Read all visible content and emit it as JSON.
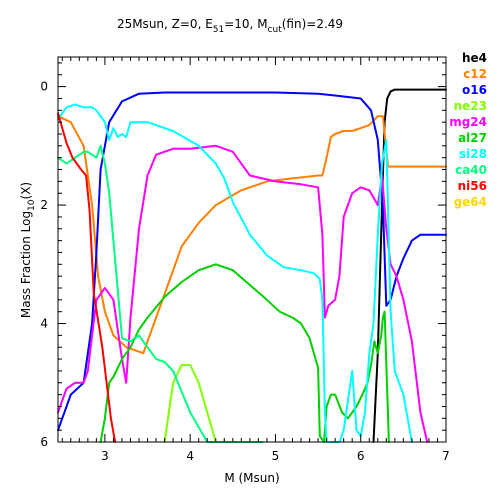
{
  "chart_data": {
    "type": "line",
    "title": {
      "pre": "25Msun, Z=0, E",
      "e_sub": "51",
      "mid": "=10, M",
      "m_sub": "cut",
      "post": "(fin)=2.49"
    },
    "xlabel": "M (Msun)",
    "ylabel": {
      "pre": "Mass Fraction Log",
      "sub": "10",
      "post": "(X)"
    },
    "xlim": [
      2.45,
      7.0
    ],
    "ylim": [
      -6.0,
      0.5
    ],
    "x_ticks": [
      3,
      4,
      5,
      6,
      7
    ],
    "y_ticks": [
      0,
      -2,
      -4,
      -6
    ],
    "x_tick_labels": [
      "3",
      "4",
      "5",
      "6",
      "7"
    ],
    "y_tick_labels": [
      "0",
      "2",
      "4",
      "6"
    ],
    "grid": false,
    "legend_position": "right-outside",
    "series": [
      {
        "name": "he4",
        "color": "#000000",
        "x": [
          6.15,
          6.2,
          6.23,
          6.26,
          6.28,
          6.31,
          6.35,
          6.4,
          6.5,
          6.8,
          7.0
        ],
        "y": [
          -6.0,
          -4.5,
          -3.0,
          -1.5,
          -0.6,
          -0.2,
          -0.08,
          -0.05,
          -0.05,
          -0.05,
          -0.05
        ]
      },
      {
        "name": "c12",
        "color": "#ff8000",
        "x": [
          2.45,
          2.6,
          2.75,
          2.85,
          2.92,
          3.0,
          3.1,
          3.25,
          3.45,
          3.6,
          3.75,
          3.9,
          4.1,
          4.3,
          4.6,
          4.9,
          5.2,
          5.5,
          5.55,
          5.6,
          5.65,
          5.7,
          5.8,
          5.9,
          6.0,
          6.1,
          6.2,
          6.26,
          6.32,
          6.4,
          6.7,
          7.0
        ],
        "y": [
          -0.5,
          -0.6,
          -1.0,
          -2.0,
          -3.2,
          -3.8,
          -4.2,
          -4.4,
          -4.5,
          -3.9,
          -3.3,
          -2.7,
          -2.3,
          -2.0,
          -1.75,
          -1.6,
          -1.55,
          -1.5,
          -1.5,
          -1.2,
          -0.85,
          -0.8,
          -0.75,
          -0.75,
          -0.7,
          -0.65,
          -0.5,
          -0.5,
          -1.35,
          -1.35,
          -1.35,
          -1.35
        ]
      },
      {
        "name": "o16",
        "color": "#0000ff",
        "x": [
          2.45,
          2.6,
          2.75,
          2.85,
          2.9,
          2.95,
          3.05,
          3.2,
          3.4,
          3.7,
          4.0,
          4.5,
          5.0,
          5.5,
          5.7,
          6.0,
          6.12,
          6.2,
          6.26,
          6.3,
          6.35,
          6.42,
          6.5,
          6.6,
          6.7,
          6.8,
          7.0
        ],
        "y": [
          -5.8,
          -5.2,
          -5.0,
          -4.0,
          -2.8,
          -1.4,
          -0.6,
          -0.25,
          -0.12,
          -0.1,
          -0.1,
          -0.1,
          -0.1,
          -0.12,
          -0.15,
          -0.2,
          -0.4,
          -0.9,
          -2.0,
          -3.7,
          -3.6,
          -3.2,
          -2.9,
          -2.6,
          -2.5,
          -2.5,
          -2.5
        ]
      },
      {
        "name": "ne23",
        "color": "#80ff00",
        "x": [
          3.7,
          3.8,
          3.9,
          4.0,
          4.1,
          4.2,
          4.3
        ],
        "y": [
          -6.0,
          -5.0,
          -4.7,
          -4.7,
          -5.0,
          -5.5,
          -6.0
        ]
      },
      {
        "name": "mg24",
        "color": "#ff00ff",
        "x": [
          2.45,
          2.55,
          2.65,
          2.75,
          2.8,
          2.9,
          3.0,
          3.1,
          3.2,
          3.25,
          3.3,
          3.4,
          3.5,
          3.6,
          3.8,
          4.0,
          4.3,
          4.5,
          4.7,
          5.0,
          5.3,
          5.5,
          5.55,
          5.58,
          5.62,
          5.7,
          5.75,
          5.8,
          5.9,
          6.0,
          6.1,
          6.2,
          6.25,
          6.3,
          6.35,
          6.42,
          6.5,
          6.6,
          6.7,
          6.78
        ],
        "y": [
          -5.5,
          -5.1,
          -5.0,
          -5.0,
          -4.8,
          -3.6,
          -3.4,
          -3.6,
          -4.6,
          -5.0,
          -3.9,
          -2.4,
          -1.5,
          -1.15,
          -1.05,
          -1.05,
          -1.0,
          -1.1,
          -1.5,
          -1.6,
          -1.65,
          -1.7,
          -2.5,
          -3.9,
          -3.7,
          -3.6,
          -3.2,
          -2.2,
          -1.8,
          -1.7,
          -1.75,
          -2.0,
          -1.5,
          -2.4,
          -3.0,
          -3.2,
          -3.6,
          -4.3,
          -5.5,
          -6.0
        ]
      },
      {
        "name": "al27",
        "color": "#00d000",
        "x": [
          2.95,
          3.0,
          3.05,
          3.1,
          3.2,
          3.3,
          3.4,
          3.5,
          3.7,
          3.9,
          4.1,
          4.3,
          4.5,
          4.7,
          4.9,
          5.05,
          5.2,
          5.3,
          5.4,
          5.5,
          5.52,
          5.57,
          5.6,
          5.65,
          5.7,
          5.78,
          5.85,
          5.95,
          6.02,
          6.08,
          6.12,
          6.16,
          6.2,
          6.24,
          6.26,
          6.28,
          6.33
        ],
        "y": [
          -6.0,
          -5.6,
          -5.0,
          -4.9,
          -4.6,
          -4.4,
          -4.1,
          -3.9,
          -3.55,
          -3.3,
          -3.1,
          -3.0,
          -3.1,
          -3.35,
          -3.6,
          -3.8,
          -3.9,
          -4.0,
          -4.25,
          -4.75,
          -5.9,
          -6.0,
          -5.4,
          -5.2,
          -5.2,
          -5.5,
          -5.6,
          -5.4,
          -5.2,
          -5.0,
          -4.7,
          -4.3,
          -4.5,
          -4.2,
          -3.9,
          -3.8,
          -6.0
        ]
      },
      {
        "name": "si28",
        "color": "#00ffff",
        "x": [
          2.45,
          2.55,
          2.65,
          2.75,
          2.85,
          2.9,
          2.95,
          3.0,
          3.05,
          3.1,
          3.15,
          3.2,
          3.25,
          3.3,
          3.5,
          3.8,
          4.1,
          4.3,
          4.4,
          4.5,
          4.7,
          4.9,
          5.1,
          5.3,
          5.45,
          5.52,
          5.55,
          5.58,
          5.6,
          5.75,
          5.8,
          5.9,
          5.95,
          6.0,
          6.05,
          6.1,
          6.15,
          6.2,
          6.25,
          6.3,
          6.35,
          6.4,
          6.45,
          6.5,
          6.55,
          6.6
        ],
        "y": [
          -0.55,
          -0.35,
          -0.3,
          -0.35,
          -0.35,
          -0.4,
          -0.5,
          -0.6,
          -0.9,
          -0.7,
          -0.85,
          -0.8,
          -0.85,
          -0.6,
          -0.6,
          -0.75,
          -1.0,
          -1.3,
          -1.55,
          -1.95,
          -2.5,
          -2.85,
          -3.05,
          -3.1,
          -3.15,
          -3.25,
          -3.6,
          -5.5,
          -6.0,
          -6.0,
          -5.8,
          -4.8,
          -5.8,
          -5.9,
          -5.5,
          -4.5,
          -4.0,
          -2.5,
          -1.3,
          -0.9,
          -3.8,
          -4.8,
          -5.0,
          -5.2,
          -5.6,
          -6.0
        ]
      },
      {
        "name": "ca40",
        "color": "#00ff80",
        "x": [
          2.45,
          2.55,
          2.65,
          2.75,
          2.8,
          2.85,
          2.9,
          2.95,
          3.0,
          3.05,
          3.1,
          3.2,
          3.3,
          3.4,
          3.5,
          3.6,
          3.7,
          3.8,
          4.0,
          4.2,
          4.3,
          4.5,
          4.7,
          4.85
        ],
        "y": [
          -1.2,
          -1.3,
          -1.2,
          -1.1,
          -1.1,
          -1.15,
          -1.2,
          -1.0,
          -1.3,
          -1.8,
          -2.6,
          -4.25,
          -4.3,
          -4.2,
          -4.4,
          -4.6,
          -4.65,
          -4.8,
          -5.5,
          -6.0,
          -6.0,
          -6.0,
          -6.0,
          -6.0
        ]
      },
      {
        "name": "ni56",
        "color": "#ff0000",
        "x": [
          2.45,
          2.55,
          2.62,
          2.67,
          2.72,
          2.78,
          2.82,
          2.87,
          2.92,
          2.97,
          3.02,
          3.07,
          3.12
        ],
        "y": [
          -0.45,
          -0.95,
          -1.2,
          -1.3,
          -1.4,
          -1.5,
          -2.1,
          -3.5,
          -3.95,
          -4.4,
          -5.0,
          -5.6,
          -6.0
        ]
      },
      {
        "name": "ge64",
        "color": "#ffd700",
        "x": [],
        "y": []
      }
    ]
  }
}
